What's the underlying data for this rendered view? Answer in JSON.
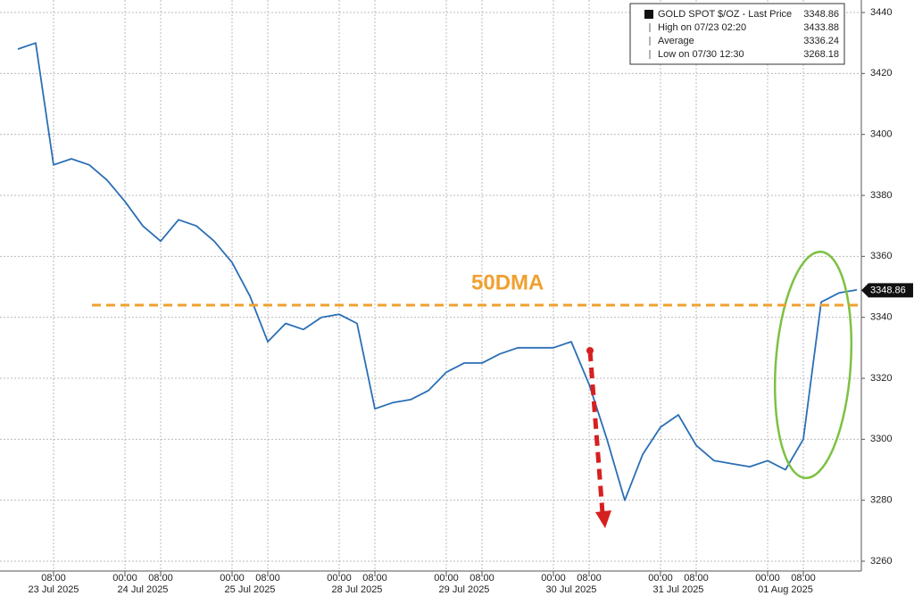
{
  "chart_data": {
    "type": "line",
    "series": [
      {
        "name": "GOLD SPOT $/OZ - Last Price",
        "color": "#2a6fb5",
        "values": [
          3428,
          3430,
          3390,
          3392,
          3390,
          3385,
          3378,
          3370,
          3365,
          3372,
          3370,
          3365,
          3358,
          3347,
          3332,
          3338,
          3336,
          3340,
          3341,
          3338,
          3310,
          3312,
          3313,
          3316,
          3322,
          3325,
          3325,
          3328,
          3330,
          3330,
          3330,
          3332,
          3318,
          3300,
          3280,
          3295,
          3304,
          3308,
          3298,
          3293,
          3292,
          3291,
          3293,
          3290,
          3300,
          3345,
          3348,
          3349
        ]
      }
    ],
    "legend": [
      {
        "label": "GOLD SPOT $/OZ - Last Price",
        "value": 3348.86
      },
      {
        "label": "High on 07/23 02:20",
        "value": 3433.88
      },
      {
        "label": "Average",
        "value": 3336.24
      },
      {
        "label": "Low on 07/30 12:30",
        "value": 3268.18
      }
    ],
    "ylim": [
      3260,
      3440
    ],
    "yticks": [
      3260,
      3280,
      3300,
      3320,
      3340,
      3360,
      3380,
      3400,
      3420,
      3440
    ],
    "xlim": [
      -1,
      47.25
    ],
    "xticks": [
      {
        "value": 2,
        "label": "08:00"
      },
      {
        "value": 6,
        "label": "00:00"
      },
      {
        "value": 8,
        "label": "08:00"
      },
      {
        "value": 12,
        "label": "00:00"
      },
      {
        "value": 14,
        "label": "08:00"
      },
      {
        "value": 18,
        "label": "00:00"
      },
      {
        "value": 20,
        "label": "08:00"
      },
      {
        "value": 24,
        "label": "00:00"
      },
      {
        "value": 26,
        "label": "08:00"
      },
      {
        "value": 30,
        "label": "00:00"
      },
      {
        "value": 32,
        "label": "08:00"
      },
      {
        "value": 36,
        "label": "00:00"
      },
      {
        "value": 38,
        "label": "08:00"
      },
      {
        "value": 42,
        "label": "00:00"
      },
      {
        "value": 44,
        "label": "08:00"
      }
    ],
    "date_labels": [
      {
        "value": 2,
        "label": "23 Jul 2025"
      },
      {
        "value": 7,
        "label": "24 Jul 2025"
      },
      {
        "value": 13,
        "label": "25 Jul 2025"
      },
      {
        "value": 19,
        "label": "28 Jul 2025"
      },
      {
        "value": 25,
        "label": "29 Jul 2025"
      },
      {
        "value": 31,
        "label": "30 Jul 2025"
      },
      {
        "value": 37,
        "label": "31 Jul 2025"
      },
      {
        "value": 43,
        "label": "01 Aug 2025"
      }
    ],
    "annotation": {
      "text": "50DMA",
      "value": 3344
    },
    "grid": true
  }
}
